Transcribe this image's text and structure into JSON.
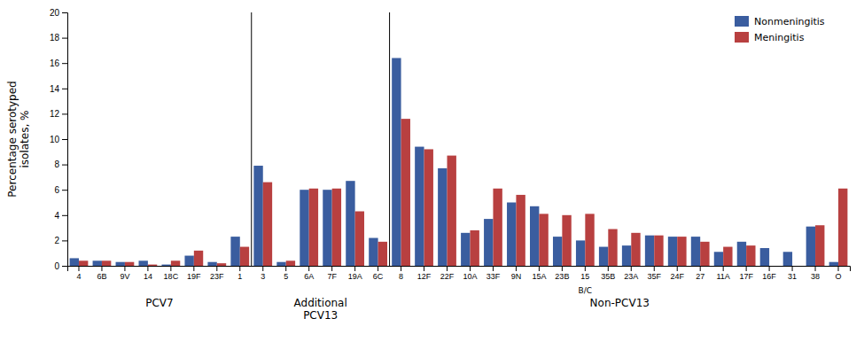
{
  "chart_data": {
    "type": "bar",
    "categories": [
      "4",
      "6B",
      "9V",
      "14",
      "18C",
      "19F",
      "23F",
      "1",
      "3",
      "5",
      "6A",
      "7F",
      "19A",
      "6C",
      "8",
      "12F",
      "22F",
      "10A",
      "33F",
      "9N",
      "15A",
      "23B",
      "15",
      "35B",
      "23A",
      "35F",
      "24F",
      "27",
      "11A",
      "17F",
      "16F",
      "31",
      "38",
      "O"
    ],
    "series": [
      {
        "name": "Nonmeningitis",
        "color": "#3A5D9F",
        "values": [
          0.6,
          0.4,
          0.3,
          0.4,
          0.1,
          0.8,
          0.3,
          2.3,
          7.9,
          0.3,
          6.0,
          6.0,
          6.7,
          2.2,
          16.4,
          9.4,
          7.7,
          2.6,
          3.7,
          5.0,
          4.7,
          2.3,
          2.0,
          1.5,
          1.6,
          2.4,
          2.3,
          2.3,
          1.1,
          1.9,
          1.4,
          1.1,
          3.1,
          0.3
        ]
      },
      {
        "name": "Meningitis",
        "color": "#B84040",
        "values": [
          0.4,
          0.4,
          0.3,
          0.1,
          0.4,
          1.2,
          0.2,
          1.5,
          6.6,
          0.4,
          6.1,
          6.1,
          4.3,
          1.9,
          11.6,
          9.2,
          8.7,
          2.8,
          6.1,
          5.6,
          4.1,
          4.0,
          4.1,
          2.9,
          2.6,
          2.4,
          2.3,
          1.9,
          1.5,
          1.6,
          0.0,
          0.0,
          3.2,
          6.1
        ]
      }
    ],
    "y_label": "Percentage serotyped\nisolates, %",
    "ylim": [
      0,
      20
    ],
    "yticks": [
      0,
      2,
      4,
      6,
      8,
      10,
      12,
      14,
      16,
      18,
      20
    ],
    "annotations": [
      {
        "text": "B/C",
        "category": "15"
      }
    ],
    "groups": [
      {
        "label": "PCV7",
        "first": "4",
        "last": "1"
      },
      {
        "label": "Additional\nPCV13",
        "first": "3",
        "last": "6C"
      },
      {
        "label": "Non-PCV13",
        "first": "8",
        "last": "O"
      }
    ],
    "legend": "upper right",
    "grid": false
  }
}
